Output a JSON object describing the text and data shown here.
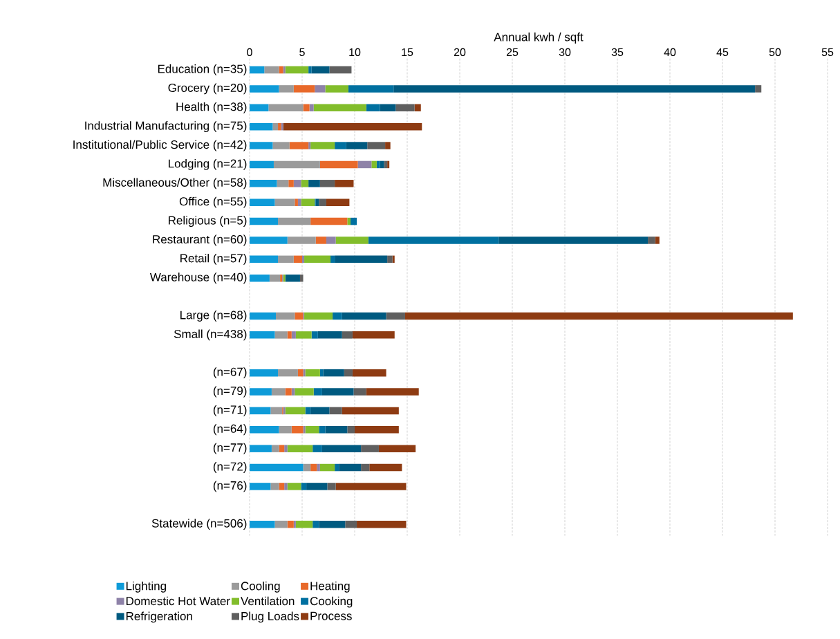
{
  "chart_data": {
    "type": "bar",
    "orientation": "horizontal",
    "stacked": true,
    "xlabel": "Annual kwh / sqft",
    "categories": [
      "Education (n=35)",
      "Grocery (n=20)",
      "Health (n=38)",
      "Industrial Manufacturing (n=75)",
      "Institutional/Public Service (n=42)",
      "Lodging (n=21)",
      "Miscellaneous/Other (n=58)",
      "Office (n=55)",
      "Religious (n=5)",
      "Restaurant (n=60)",
      "Retail (n=57)",
      "Warehouse (n=40)",
      null,
      "Large (n=68)",
      "Small (n=438)",
      null,
      "(n=67)",
      "(n=79)",
      "(n=71)",
      "(n=64)",
      "(n=77)",
      "(n=72)",
      "(n=76)",
      null,
      "Statewide (n=506)"
    ],
    "series": [
      {
        "name": "Lighting",
        "color": "#0e9bd8",
        "values": [
          1.4,
          2.8,
          1.8,
          2.2,
          2.2,
          2.3,
          2.6,
          2.4,
          2.7,
          3.6,
          2.7,
          1.9,
          null,
          2.5,
          2.4,
          null,
          2.7,
          2.1,
          2.0,
          2.8,
          2.1,
          5.1,
          2.0,
          null,
          2.4
        ]
      },
      {
        "name": "Cooling",
        "color": "#9b9b9b",
        "values": [
          1.4,
          1.4,
          3.3,
          0.5,
          1.6,
          4.4,
          1.1,
          1.9,
          3.1,
          2.7,
          1.5,
          1.0,
          null,
          1.8,
          1.2,
          null,
          1.9,
          1.3,
          1.1,
          1.2,
          0.7,
          0.7,
          0.8,
          null,
          1.2
        ]
      },
      {
        "name": "Heating",
        "color": "#e8692a",
        "values": [
          0.4,
          2.0,
          0.6,
          0.3,
          1.8,
          3.6,
          0.5,
          0.3,
          3.5,
          1.0,
          0.8,
          0.2,
          null,
          0.8,
          0.4,
          null,
          0.5,
          0.6,
          0.1,
          1.1,
          0.5,
          0.6,
          0.5,
          null,
          0.6
        ]
      },
      {
        "name": "Domestic Hot Water",
        "color": "#8e82a8",
        "values": [
          0.2,
          1.0,
          0.4,
          0.2,
          0.2,
          1.3,
          0.7,
          0.3,
          0,
          0.9,
          0.2,
          0.1,
          null,
          0.1,
          0.4,
          null,
          0.2,
          0.3,
          0.2,
          0.2,
          0.3,
          0.3,
          0.3,
          null,
          0.2
        ]
      },
      {
        "name": "Ventilation",
        "color": "#82bd2b",
        "values": [
          2.2,
          2.2,
          5.0,
          0,
          2.3,
          0.5,
          0.7,
          1.3,
          0.3,
          3.1,
          2.5,
          0.2,
          null,
          2.7,
          1.5,
          null,
          1.4,
          1.8,
          1.9,
          1.3,
          2.4,
          1.4,
          1.3,
          null,
          1.6
        ]
      },
      {
        "name": "Cooking",
        "color": "#0070a0",
        "values": [
          0.3,
          4.3,
          1.3,
          0,
          1.1,
          0.3,
          0,
          0.1,
          0.6,
          12.4,
          0.4,
          0,
          null,
          0.9,
          0.6,
          null,
          0.3,
          0.8,
          0.5,
          0.6,
          0.9,
          0.4,
          0.5,
          null,
          0.6
        ]
      },
      {
        "name": "Refrigeration",
        "color": "#005a80",
        "values": [
          1.7,
          34.4,
          1.5,
          0,
          2.0,
          0.4,
          1.1,
          0.3,
          0,
          14.2,
          5.0,
          1.4,
          null,
          4.2,
          2.3,
          null,
          2.0,
          3.0,
          1.8,
          2.1,
          3.7,
          2.1,
          2.0,
          null,
          2.5
        ]
      },
      {
        "name": "Plug Loads",
        "color": "#5f5f5f",
        "values": [
          2.1,
          0.6,
          1.8,
          0,
          1.7,
          0.3,
          1.4,
          0.7,
          0,
          0.7,
          0.5,
          0.3,
          null,
          1.8,
          1.0,
          null,
          0.8,
          1.2,
          1.2,
          0.7,
          1.7,
          0.8,
          0.8,
          null,
          1.1
        ]
      },
      {
        "name": "Process",
        "color": "#8e3b12",
        "values": [
          0,
          0,
          0.6,
          13.2,
          0.5,
          0.2,
          1.8,
          2.2,
          0,
          0.4,
          0.2,
          0,
          null,
          36.9,
          4.0,
          null,
          3.2,
          5.0,
          5.4,
          4.2,
          3.5,
          3.1,
          6.7,
          null,
          4.7
        ]
      }
    ],
    "xlim": [
      0,
      55
    ],
    "xticks": [
      0,
      5,
      10,
      15,
      20,
      25,
      30,
      35,
      40,
      45,
      50,
      55
    ],
    "grid": "x",
    "legend": "bottom"
  }
}
